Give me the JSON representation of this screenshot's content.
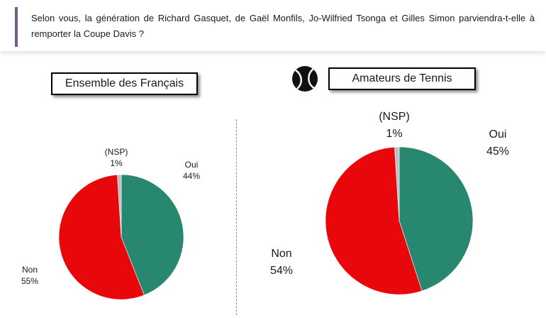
{
  "question": "Selon vous, la génération de Richard Gasquet, de Gaël Monfils, Jo-Wilfried Tsonga et Gilles Simon parviendra-t-elle à remporter la Coupe Davis ?",
  "icon": "tennis-ball-icon",
  "colors": {
    "oui": "#27876f",
    "non": "#e8080c",
    "nsp": "#bfbfbf",
    "accent": "#7a5a8c"
  },
  "chart_data": [
    {
      "type": "pie",
      "title": "Ensemble des Français",
      "slices": [
        {
          "label": "Oui",
          "value": 44,
          "display": "44%",
          "color": "#27876f"
        },
        {
          "label": "Non",
          "value": 55,
          "display": "55%",
          "color": "#e8080c"
        },
        {
          "label": "(NSP)",
          "value": 1,
          "display": "1%",
          "color": "#bfbfbf"
        }
      ]
    },
    {
      "type": "pie",
      "title": "Amateurs de Tennis",
      "slices": [
        {
          "label": "Oui",
          "value": 45,
          "display": "45%",
          "color": "#27876f"
        },
        {
          "label": "Non",
          "value": 54,
          "display": "54%",
          "color": "#e8080c"
        },
        {
          "label": "(NSP)",
          "value": 1,
          "display": "1%",
          "color": "#bfbfbf"
        }
      ]
    }
  ]
}
